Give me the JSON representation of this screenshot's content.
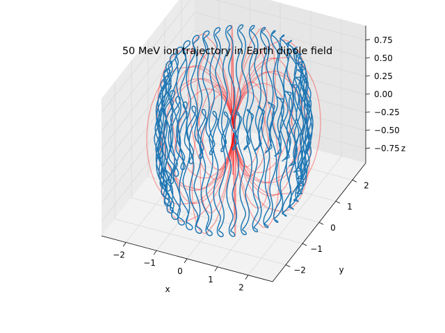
{
  "chart_data": {
    "type": "3d-line",
    "title": "50 MeV ion trajectory in Earth dipole field",
    "xlabel": "x",
    "ylabel": "y",
    "zlabel": "z",
    "xlim": [
      -2.8,
      2.8
    ],
    "ylim": [
      -2.8,
      2.8
    ],
    "zlim": [
      -0.95,
      0.95
    ],
    "x_ticks": [
      -2,
      -1,
      0,
      1,
      2
    ],
    "y_ticks": [
      -2,
      -1,
      0,
      1,
      2
    ],
    "z_ticks": [
      -0.75,
      -0.5,
      -0.25,
      0.0,
      0.25,
      0.5,
      0.75
    ],
    "x_tick_labels": [
      "−2",
      "−1",
      "0",
      "1",
      "2"
    ],
    "y_tick_labels": [
      "−2",
      "−1",
      "0",
      "1",
      "2"
    ],
    "z_tick_labels": [
      "−0.75",
      "−0.50",
      "−0.25",
      "0.00",
      "0.25",
      "0.50",
      "0.75"
    ],
    "grid": true,
    "series": [
      {
        "kind": "dipole-field-lines",
        "color": "#ff0000",
        "opacity": 0.35,
        "L_shells": [
          2.0,
          2.5
        ],
        "azimuths_deg": [
          0,
          30,
          60,
          90,
          120,
          150,
          180,
          210,
          240,
          270,
          300,
          330
        ]
      },
      {
        "kind": "ion-trajectory",
        "color": "#1f77b4",
        "L_shell": 2.2,
        "bounce_oscillations": 36,
        "gyration_wiggles": 7,
        "z_amplitude": 0.85
      }
    ]
  }
}
